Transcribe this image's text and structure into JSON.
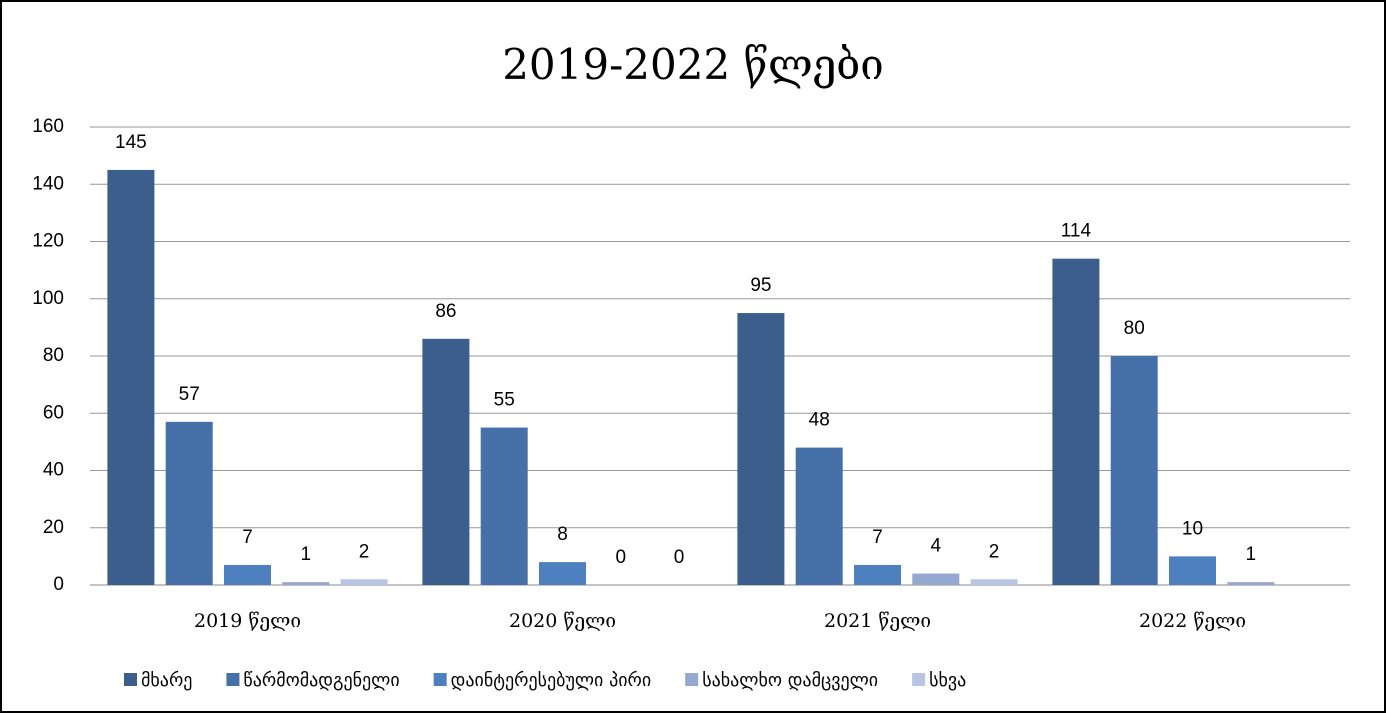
{
  "chart_data": {
    "type": "bar",
    "title": "2019-2022 წლები",
    "categories": [
      "2019 წელი",
      "2020 წელი",
      "2021 წელი",
      "2022 წელი"
    ],
    "series": [
      {
        "name": "მხარე",
        "color": "#3b5e8c",
        "values": [
          145,
          86,
          95,
          114
        ]
      },
      {
        "name": "წარმომადგენელი",
        "color": "#4571a8",
        "values": [
          57,
          55,
          48,
          80
        ]
      },
      {
        "name": "დაინტერესებული პირი",
        "color": "#4e7fbf",
        "values": [
          7,
          8,
          7,
          10
        ]
      },
      {
        "name": "სახალხო დამცველი",
        "color": "#95a9d0",
        "values": [
          1,
          0,
          4,
          1
        ]
      },
      {
        "name": "სხვა",
        "color": "#b8c6e3",
        "values": [
          2,
          0,
          2,
          null
        ]
      }
    ],
    "ylim": [
      0,
      160
    ],
    "yticks": [
      0,
      20,
      40,
      60,
      80,
      100,
      120,
      140,
      160
    ],
    "grid": true,
    "legend": "bottom"
  }
}
